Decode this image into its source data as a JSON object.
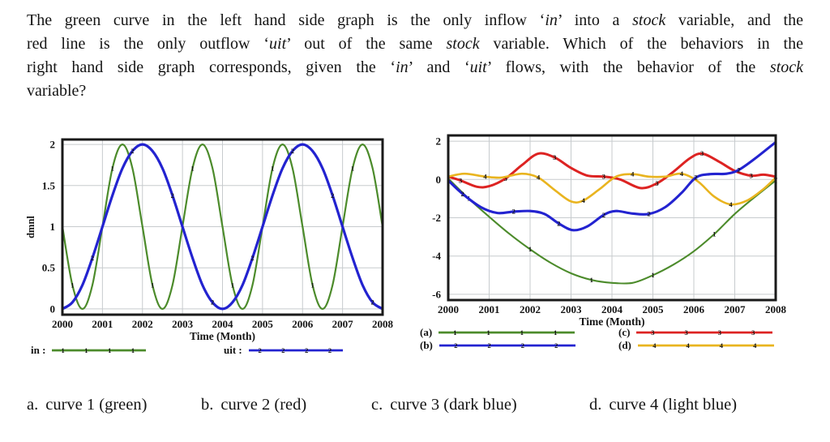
{
  "question": {
    "lines": [
      [
        {
          "t": "The green curve in the left hand side graph is the only inflow ‘"
        },
        {
          "t": "in",
          "i": true
        },
        {
          "t": "’ into a "
        },
        {
          "t": "stock",
          "i": true
        },
        {
          "t": " variable, and the"
        }
      ],
      [
        {
          "t": "red line is the only outflow ‘"
        },
        {
          "t": "uit",
          "i": true
        },
        {
          "t": "’ out of the same "
        },
        {
          "t": "stock",
          "i": true
        },
        {
          "t": " variable. Which of the behaviors in the"
        }
      ],
      [
        {
          "t": "right hand side graph corresponds, given the ‘"
        },
        {
          "t": "in",
          "i": true
        },
        {
          "t": "’ and ‘"
        },
        {
          "t": "uit",
          "i": true
        },
        {
          "t": "’ flows, with the behavior of the "
        },
        {
          "t": "stock",
          "i": true
        }
      ],
      [
        {
          "t": "variable?"
        }
      ]
    ]
  },
  "colors": {
    "green": "#4c8b2b",
    "blue": "#2323d0",
    "red": "#dd2322",
    "yellow": "#e9b41f",
    "grid": "#c7cbce",
    "frame": "#1a1a1a",
    "text": "#141414"
  },
  "chart_data": [
    {
      "type": "line",
      "title": "",
      "xlabel": "Time (Month)",
      "ylabel": "dmnl",
      "xlim": [
        2000,
        2008
      ],
      "ylim": [
        -0.07,
        2.06
      ],
      "xticks": [
        2000,
        2001,
        2002,
        2003,
        2004,
        2005,
        2006,
        2007,
        2008
      ],
      "yticks": [
        0,
        0.5,
        1,
        1.5,
        2
      ],
      "grid": true,
      "legend_position": "below",
      "series": [
        {
          "key": "in",
          "name": "in :",
          "color": "green",
          "marker": "1",
          "x_start": 2000,
          "x_step": 0.25,
          "values": [
            1,
            0.29,
            0,
            0.29,
            1,
            1.71,
            2,
            1.71,
            1,
            0.29,
            0,
            0.29,
            1,
            1.71,
            2,
            1.71,
            1,
            0.29,
            0,
            0.29,
            1,
            1.71,
            2,
            1.71,
            1,
            0.29,
            0,
            0.29,
            1,
            1.71,
            2,
            1.71,
            1
          ],
          "marker_every": 4,
          "marker_offset": 1
        },
        {
          "key": "uit",
          "name": "uit :",
          "color": "blue",
          "marker": "2",
          "x_start": 2000,
          "x_step": 0.25,
          "values": [
            0,
            0.08,
            0.29,
            0.62,
            1,
            1.38,
            1.71,
            1.92,
            2,
            1.92,
            1.71,
            1.38,
            1,
            0.62,
            0.29,
            0.08,
            0,
            0.08,
            0.29,
            0.62,
            1,
            1.38,
            1.71,
            1.92,
            2,
            1.92,
            1.71,
            1.38,
            1,
            0.62,
            0.29,
            0.08,
            0
          ],
          "marker_every": 4,
          "marker_offset": 3
        }
      ]
    },
    {
      "type": "line",
      "title": "",
      "xlabel": "Time (Month)",
      "ylabel": "",
      "xlim": [
        2000,
        2008
      ],
      "ylim": [
        -6.3,
        2.3
      ],
      "xticks": [
        2000,
        2001,
        2002,
        2003,
        2004,
        2005,
        2006,
        2007,
        2008
      ],
      "yticks": [
        2,
        0,
        -2,
        -4,
        -6
      ],
      "grid": true,
      "legend_position": "below",
      "series": [
        {
          "key": "a",
          "name": "(a)",
          "color": "green",
          "marker": "1",
          "points": [
            [
              2000,
              0.05
            ],
            [
              2000.5,
              -1.0
            ],
            [
              2001,
              -1.95
            ],
            [
              2001.5,
              -2.85
            ],
            [
              2002,
              -3.65
            ],
            [
              2002.5,
              -4.35
            ],
            [
              2003,
              -4.9
            ],
            [
              2003.5,
              -5.25
            ],
            [
              2004,
              -5.4
            ],
            [
              2004.5,
              -5.4
            ],
            [
              2005,
              -5.0
            ],
            [
              2005.5,
              -4.45
            ],
            [
              2006,
              -3.75
            ],
            [
              2006.5,
              -2.85
            ],
            [
              2007,
              -1.8
            ],
            [
              2007.5,
              -0.9
            ],
            [
              2008,
              -0.05
            ]
          ],
          "marker_every": 3,
          "marker_offset": 1
        },
        {
          "key": "c",
          "name": "(c)",
          "color": "red",
          "marker": "3",
          "points": [
            [
              2000,
              0.15
            ],
            [
              2000.3,
              -0.05
            ],
            [
              2000.7,
              -0.38
            ],
            [
              2001,
              -0.35
            ],
            [
              2001.4,
              0.05
            ],
            [
              2001.8,
              0.75
            ],
            [
              2002.2,
              1.35
            ],
            [
              2002.6,
              1.15
            ],
            [
              2003,
              0.6
            ],
            [
              2003.4,
              0.2
            ],
            [
              2003.8,
              0.15
            ],
            [
              2004.2,
              0.0
            ],
            [
              2004.7,
              -0.45
            ],
            [
              2005.1,
              -0.2
            ],
            [
              2005.5,
              0.4
            ],
            [
              2005.9,
              1.1
            ],
            [
              2006.2,
              1.35
            ],
            [
              2006.6,
              0.95
            ],
            [
              2007,
              0.45
            ],
            [
              2007.4,
              0.2
            ],
            [
              2007.7,
              0.25
            ],
            [
              2008,
              0.15
            ]
          ],
          "marker_every": 3,
          "marker_offset": 1
        },
        {
          "key": "d",
          "name": "(d)",
          "color": "yellow",
          "marker": "4",
          "points": [
            [
              2000,
              0.15
            ],
            [
              2000.4,
              0.3
            ],
            [
              2000.9,
              0.15
            ],
            [
              2001.3,
              0.1
            ],
            [
              2001.8,
              0.3
            ],
            [
              2002.2,
              0.1
            ],
            [
              2002.6,
              -0.55
            ],
            [
              2003,
              -1.15
            ],
            [
              2003.3,
              -1.1
            ],
            [
              2003.7,
              -0.5
            ],
            [
              2004.1,
              0.15
            ],
            [
              2004.5,
              0.28
            ],
            [
              2004.9,
              0.15
            ],
            [
              2005.3,
              0.15
            ],
            [
              2005.7,
              0.3
            ],
            [
              2006.1,
              -0.1
            ],
            [
              2006.5,
              -0.9
            ],
            [
              2006.9,
              -1.3
            ],
            [
              2007.3,
              -1.1
            ],
            [
              2007.7,
              -0.5
            ],
            [
              2008,
              0.1
            ]
          ],
          "marker_every": 3,
          "marker_offset": 2
        },
        {
          "key": "b",
          "name": "(b)",
          "color": "blue",
          "marker": "2",
          "points": [
            [
              2000,
              -0.05
            ],
            [
              2000.35,
              -0.75
            ],
            [
              2000.8,
              -1.45
            ],
            [
              2001.2,
              -1.75
            ],
            [
              2001.6,
              -1.68
            ],
            [
              2002,
              -1.65
            ],
            [
              2002.35,
              -1.8
            ],
            [
              2002.7,
              -2.3
            ],
            [
              2003.05,
              -2.65
            ],
            [
              2003.4,
              -2.45
            ],
            [
              2003.8,
              -1.85
            ],
            [
              2004.1,
              -1.65
            ],
            [
              2004.5,
              -1.78
            ],
            [
              2004.9,
              -1.8
            ],
            [
              2005.3,
              -1.45
            ],
            [
              2005.7,
              -0.7
            ],
            [
              2006.05,
              0.1
            ],
            [
              2006.4,
              0.28
            ],
            [
              2006.8,
              0.3
            ],
            [
              2007.1,
              0.5
            ],
            [
              2007.5,
              1.1
            ],
            [
              2008,
              1.95
            ]
          ],
          "marker_every": 3,
          "marker_offset": 1
        }
      ],
      "legend_order": [
        "a",
        "b",
        "c",
        "d"
      ]
    }
  ],
  "options": [
    {
      "letter": "a.",
      "label": "curve 1 (green)"
    },
    {
      "letter": "b.",
      "label": "curve 2 (red)"
    },
    {
      "letter": "c.",
      "label": "curve 3 (dark blue)"
    },
    {
      "letter": "d.",
      "label": "curve 4 (light blue)"
    }
  ]
}
